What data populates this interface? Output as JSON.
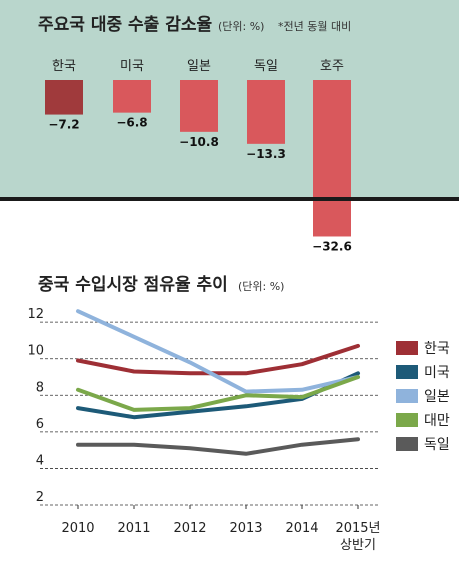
{
  "chart_data": [
    {
      "type": "bar",
      "title": "주요국 대중 수출 감소율",
      "unit_note": "(단위: %)",
      "footnote": "*전년 동월 대비",
      "categories": [
        "한국",
        "미국",
        "일본",
        "독일",
        "호주"
      ],
      "values": [
        -7.2,
        -6.8,
        -10.8,
        -13.3,
        -32.6
      ],
      "value_labels": [
        "−7.2",
        "−6.8",
        "−10.8",
        "−13.3",
        "−32.6"
      ],
      "colors": [
        "#a03a3c",
        "#d9585c",
        "#d9585c",
        "#d9585c",
        "#d9585c"
      ],
      "background": "#b9d6cc",
      "baseline_color": "#1a1a1a"
    },
    {
      "type": "line",
      "title": "중국 수입시장 점유율 추이",
      "unit_note": "(단위: %)",
      "x_labels": [
        "2010",
        "2011",
        "2012",
        "2013",
        "2014",
        "2015년\n상반기"
      ],
      "y_ticks": [
        2,
        4,
        6,
        8,
        10,
        12
      ],
      "ylim": [
        2,
        12.5
      ],
      "grid": "dashed-horizontal",
      "legend_position": "right",
      "series": [
        {
          "name": "한국",
          "color": "#9e2f35",
          "values": [
            9.9,
            9.3,
            9.2,
            9.2,
            9.7,
            10.7
          ]
        },
        {
          "name": "미국",
          "color": "#1d5a78",
          "values": [
            7.3,
            6.8,
            7.1,
            7.4,
            7.8,
            9.2
          ]
        },
        {
          "name": "일본",
          "color": "#8fb3dc",
          "values": [
            12.6,
            11.2,
            9.8,
            8.2,
            8.3,
            9.0
          ]
        },
        {
          "name": "대만",
          "color": "#7ba84a",
          "values": [
            8.3,
            7.2,
            7.3,
            8.0,
            7.9,
            9.0
          ]
        },
        {
          "name": "독일",
          "color": "#5a5a5a",
          "values": [
            5.3,
            5.3,
            5.1,
            4.8,
            5.3,
            5.6
          ]
        }
      ]
    }
  ]
}
